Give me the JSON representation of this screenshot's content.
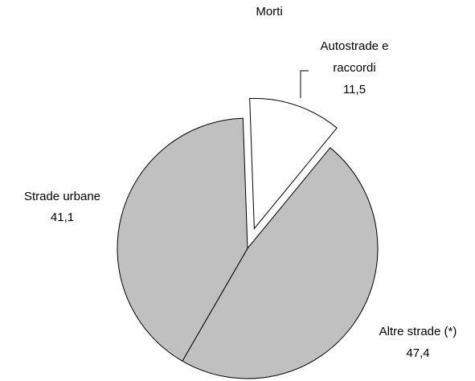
{
  "chart_data": {
    "type": "pie",
    "title": "Morti",
    "categories": [
      "Autostrade e raccordi",
      "Altre strade (*)",
      "Strade urbane"
    ],
    "values": [
      11.5,
      47.4,
      41.1
    ],
    "value_labels": [
      "11,5",
      "47,4",
      "41,1"
    ],
    "colors": [
      "#ffffff",
      "#c0c0c0",
      "#c0c0c0"
    ]
  }
}
